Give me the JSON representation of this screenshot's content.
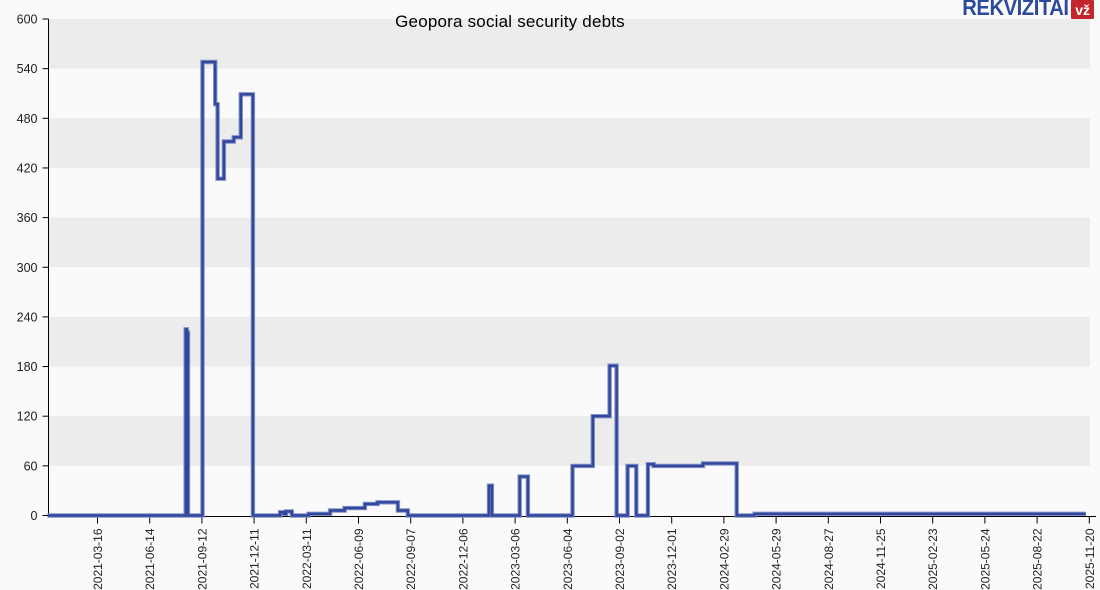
{
  "header": {
    "logo_text": "REKVIZITAI",
    "logo_badge": "vž",
    "brand_blue": "#2b4a9c",
    "brand_red": "#c2272d"
  },
  "chart_data": {
    "type": "line",
    "step": true,
    "title": "Geopora social security debts",
    "xlabel": "",
    "ylabel": "",
    "ylim": [
      0,
      600
    ],
    "yticks": [
      600,
      540,
      480,
      420,
      360,
      300,
      240,
      180,
      120,
      60,
      0
    ],
    "xticks": [
      "2021-03-16",
      "2021-06-14",
      "2021-09-12",
      "2021-12-11",
      "2022-03-11",
      "2022-06-09",
      "2022-09-07",
      "2022-12-06",
      "2023-03-06",
      "2023-06-04",
      "2023-09-02",
      "2023-12-01",
      "2024-02-29",
      "2024-05-29",
      "2024-08-27",
      "2024-11-25",
      "2025-02-23",
      "2025-05-24",
      "2025-08-22",
      "2025-11-20"
    ],
    "x_axis": {
      "origin": "2021-03-16",
      "tick_interval_days": 90
    },
    "grid": "alternating-bands",
    "band_color_dark": "#ececec",
    "band_color_light": "#fafafa",
    "axis_color": "#000000",
    "tick_label_color": "#222222",
    "legend_position": "none",
    "series": [
      {
        "name": "Social security debt",
        "color": "#31479b",
        "color_edge": "#8290c8",
        "points": [
          {
            "date": "2020-12-20",
            "value": 0
          },
          {
            "date": "2021-08-15",
            "value": 225
          },
          {
            "date": "2021-08-17",
            "value": 221
          },
          {
            "date": "2021-08-19",
            "value": 0
          },
          {
            "date": "2021-09-13",
            "value": 548
          },
          {
            "date": "2021-10-05",
            "value": 497
          },
          {
            "date": "2021-10-09",
            "value": 407
          },
          {
            "date": "2021-10-20",
            "value": 452
          },
          {
            "date": "2021-11-06",
            "value": 457
          },
          {
            "date": "2021-11-18",
            "value": 509
          },
          {
            "date": "2021-12-09",
            "value": 0
          },
          {
            "date": "2022-01-25",
            "value": 4
          },
          {
            "date": "2022-01-31",
            "value": 2
          },
          {
            "date": "2022-02-04",
            "value": 5
          },
          {
            "date": "2022-02-14",
            "value": 0
          },
          {
            "date": "2022-03-15",
            "value": 2
          },
          {
            "date": "2022-04-21",
            "value": 6
          },
          {
            "date": "2022-05-16",
            "value": 9
          },
          {
            "date": "2022-06-20",
            "value": 14
          },
          {
            "date": "2022-07-12",
            "value": 16
          },
          {
            "date": "2022-08-16",
            "value": 6
          },
          {
            "date": "2022-09-02",
            "value": 0
          },
          {
            "date": "2023-01-20",
            "value": 36
          },
          {
            "date": "2023-01-25",
            "value": 0
          },
          {
            "date": "2023-03-14",
            "value": 47
          },
          {
            "date": "2023-03-28",
            "value": 0
          },
          {
            "date": "2023-06-13",
            "value": 60
          },
          {
            "date": "2023-07-18",
            "value": 120
          },
          {
            "date": "2023-08-16",
            "value": 181
          },
          {
            "date": "2023-08-28",
            "value": 0
          },
          {
            "date": "2023-09-16",
            "value": 60
          },
          {
            "date": "2023-10-01",
            "value": 0
          },
          {
            "date": "2023-10-21",
            "value": 62
          },
          {
            "date": "2023-10-31",
            "value": 60
          },
          {
            "date": "2024-01-24",
            "value": 63
          },
          {
            "date": "2024-03-22",
            "value": 0
          },
          {
            "date": "2024-04-22",
            "value": 2
          },
          {
            "date": "2025-11-14",
            "value": 2
          }
        ]
      }
    ]
  }
}
